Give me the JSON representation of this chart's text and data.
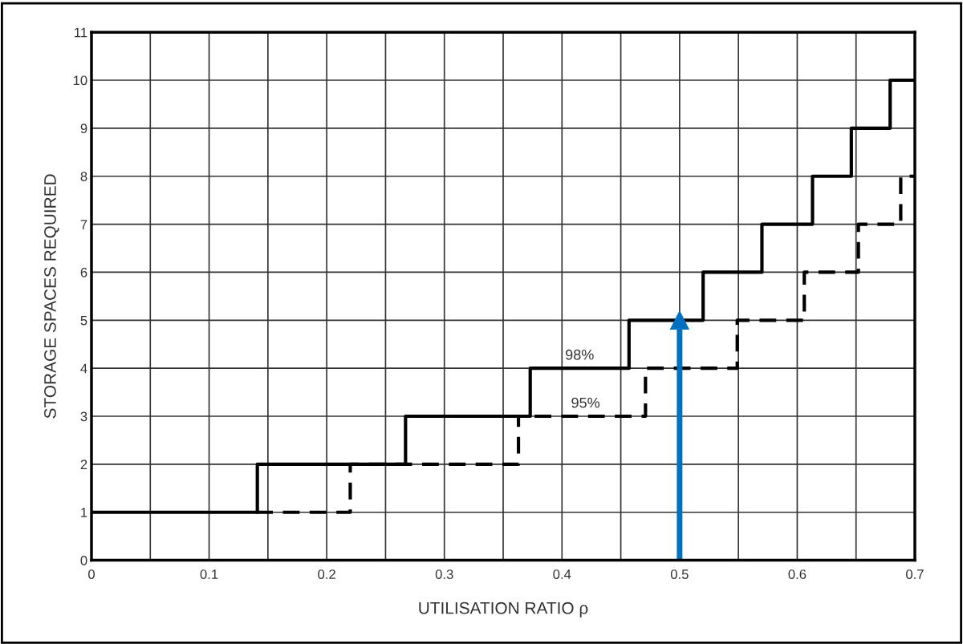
{
  "chart_data": {
    "type": "step",
    "xlabel": "UTILISATION RATIO ρ",
    "ylabel": "STORAGE SPACES REQUIRED",
    "series": [
      {
        "color": "#000000",
        "line_style": "solid",
        "x": [
          0,
          0.141,
          0.267,
          0.373,
          0.457,
          0.52,
          0.57,
          0.613,
          0.646,
          0.679,
          0.7
        ],
        "values": [
          1,
          2,
          3,
          4,
          5,
          6,
          7,
          8,
          9,
          10,
          10
        ]
      },
      {
        "color": "#000000",
        "line_style": "dashed",
        "x": [
          0.14,
          0.22,
          0.363,
          0.471,
          0.549,
          0.606,
          0.652,
          0.688,
          0.7
        ],
        "values": [
          1,
          2,
          3,
          4,
          5,
          6,
          7,
          8,
          8
        ]
      },
      {
        "type": "line",
        "color": "#0070c0",
        "marker": "triangle",
        "x": [
          0.5,
          0.5
        ],
        "values": [
          0,
          5
        ]
      }
    ],
    "annotations": [
      {
        "text": "98%",
        "x": 0.415,
        "y": 4
      },
      {
        "text": "95%",
        "x": 0.42,
        "y": 3
      }
    ],
    "xlim": [
      0,
      0.7
    ],
    "ylim": [
      0,
      11
    ],
    "xticks": [
      0,
      {
        "value": 0.05,
        "label": null
      },
      0.1,
      {
        "value": 0.15,
        "label": null
      },
      0.2,
      {
        "value": 0.25,
        "label": null
      },
      0.3,
      {
        "value": 0.35,
        "label": null
      },
      0.4,
      {
        "value": 0.45,
        "label": null
      },
      0.5,
      {
        "value": 0.55,
        "label": null
      },
      0.6,
      {
        "value": 0.65,
        "label": null
      },
      0.7
    ],
    "yticks": [
      0,
      1,
      2,
      3,
      4,
      5,
      6,
      7,
      8,
      9,
      10,
      11
    ],
    "grid": true
  }
}
